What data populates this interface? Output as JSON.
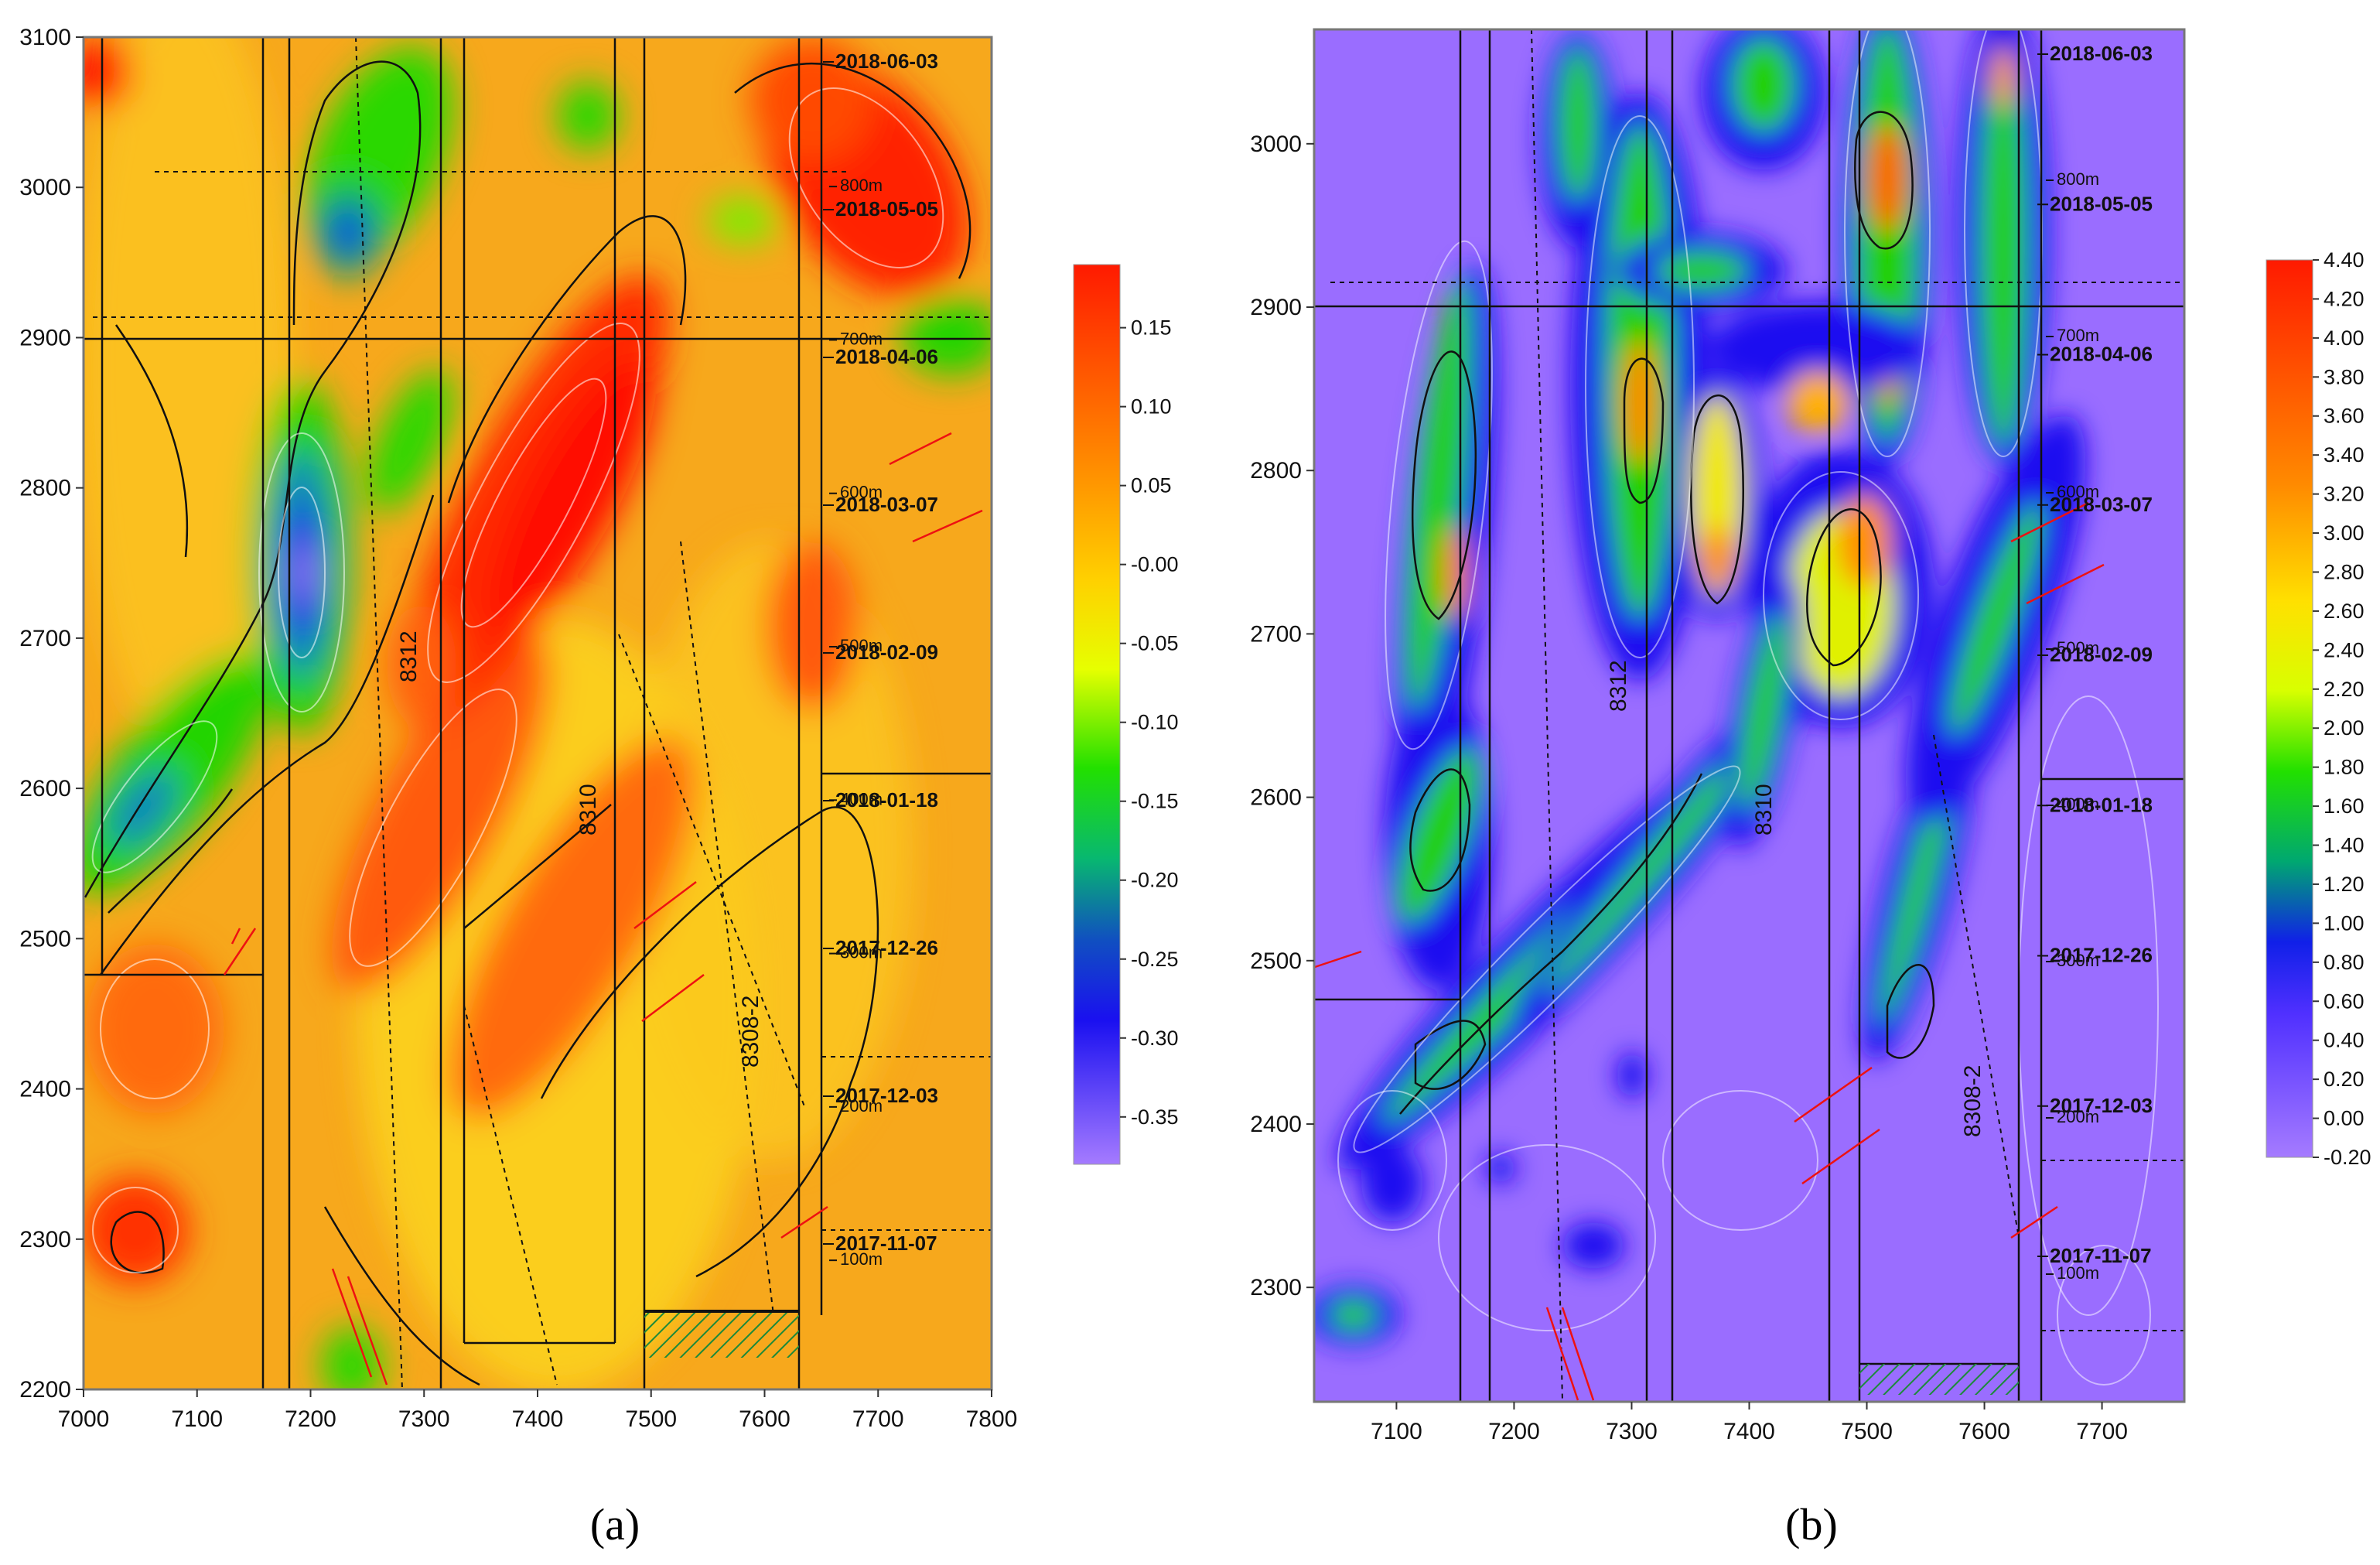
{
  "panels": [
    {
      "id": "a",
      "caption": "(a)",
      "colormap": "rainbow-orange",
      "x_axis": {
        "min": 7000,
        "max": 7800,
        "ticks": [
          "7000",
          "7100",
          "7200",
          "7300",
          "7400",
          "7500",
          "7600",
          "7700",
          "7800"
        ]
      },
      "y_axis": {
        "min": 2200,
        "max": 3100,
        "ticks": [
          "2200",
          "2300",
          "2400",
          "2500",
          "2600",
          "2700",
          "2800",
          "2900",
          "3000",
          "3100"
        ]
      },
      "colorbar": {
        "min": -0.38,
        "max": 0.19,
        "ticks": [
          "0.15",
          "0.10",
          "0.05",
          "-0.00",
          "-0.05",
          "-0.10",
          "-0.15",
          "-0.20",
          "-0.25",
          "-0.30",
          "-0.35"
        ]
      },
      "dates": [
        "2018-06-03",
        "2018-05-05",
        "2018-04-06",
        "2018-03-07",
        "2018-02-09",
        "2018-01-18",
        "2017-12-26",
        "2017-12-03",
        "2017-11-07"
      ],
      "distances": [
        "800m",
        "700m",
        "600m",
        "500m",
        "400m",
        "300m",
        "200m",
        "100m"
      ],
      "face_labels": [
        "8312",
        "8310",
        "8308-2"
      ]
    },
    {
      "id": "b",
      "caption": "(b)",
      "colormap": "purple-rainbow",
      "x_axis": {
        "min": 7030,
        "max": 7770,
        "ticks": [
          "7100",
          "7200",
          "7300",
          "7400",
          "7500",
          "7600",
          "7700"
        ]
      },
      "y_axis": {
        "min": 2230,
        "max": 3070,
        "ticks": [
          "2300",
          "2400",
          "2500",
          "2600",
          "2700",
          "2800",
          "2900",
          "3000"
        ]
      },
      "colorbar": {
        "min": -0.2,
        "max": 4.4,
        "ticks": [
          "4.40",
          "4.20",
          "4.00",
          "3.80",
          "3.60",
          "3.40",
          "3.20",
          "3.00",
          "2.80",
          "2.60",
          "2.40",
          "2.20",
          "2.00",
          "1.80",
          "1.60",
          "1.40",
          "1.20",
          "1.00",
          "0.80",
          "0.60",
          "0.40",
          "0.20",
          "0.00",
          "-0.20"
        ]
      },
      "dates": [
        "2018-06-03",
        "2018-05-05",
        "2018-04-06",
        "2018-03-07",
        "2018-02-09",
        "2018-01-18",
        "2017-12-26",
        "2017-12-03",
        "2017-11-07"
      ],
      "distances": [
        "800m",
        "700m",
        "600m",
        "500m",
        "400m",
        "300m",
        "200m",
        "100m"
      ],
      "face_labels": [
        "8312",
        "8310",
        "8308-2"
      ]
    }
  ]
}
